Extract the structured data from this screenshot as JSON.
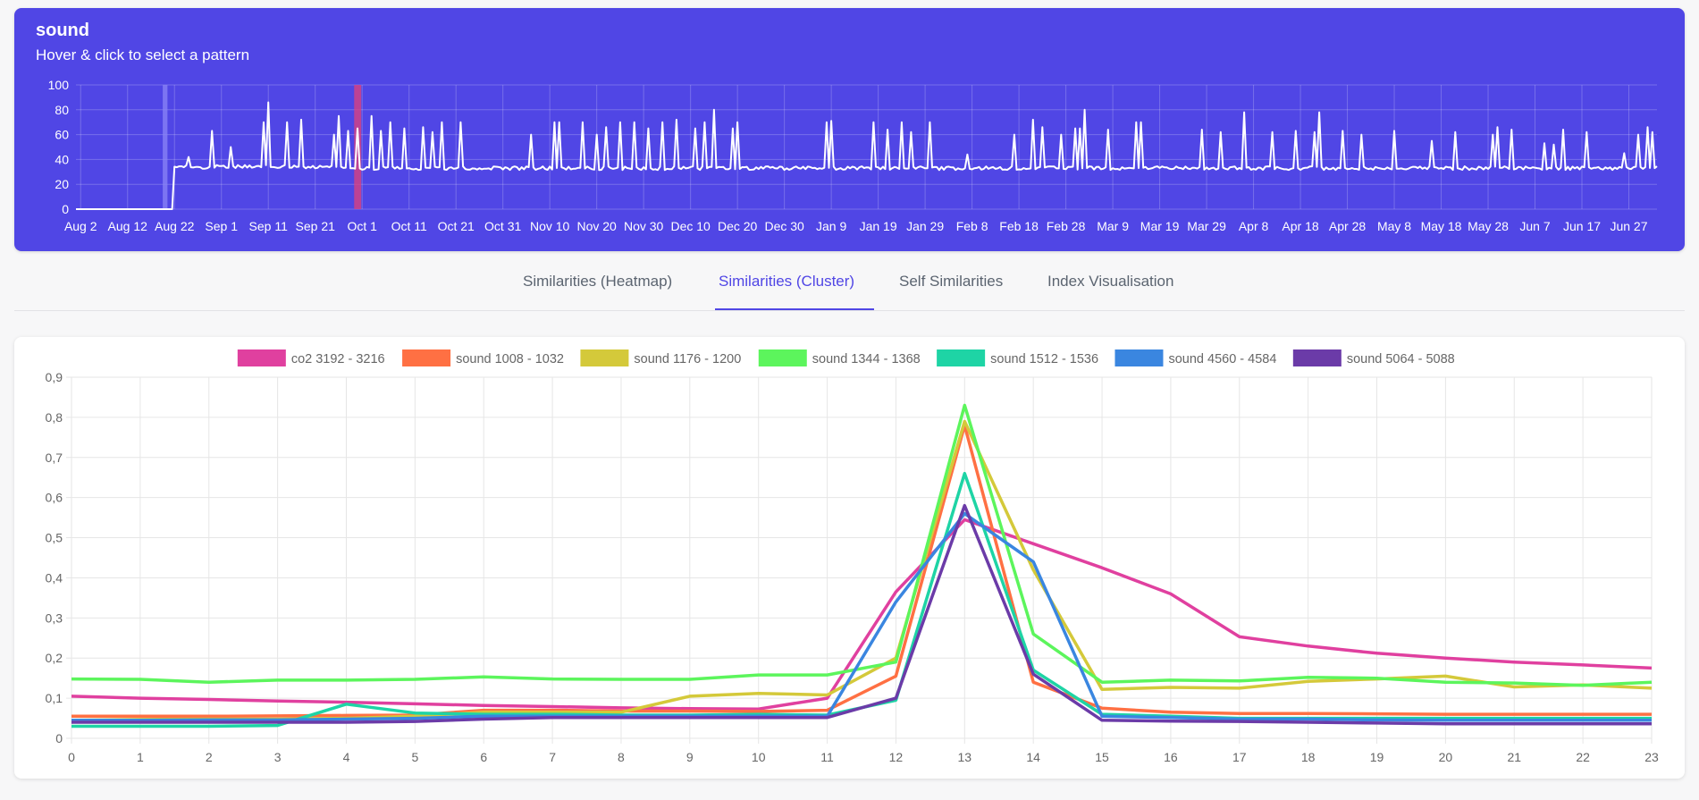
{
  "header": {
    "title": "sound",
    "subtitle": "Hover & click to select a pattern"
  },
  "overview_chart": {
    "type": "line",
    "y_ticks": [
      "100",
      "80",
      "60",
      "40",
      "20",
      "0"
    ],
    "ylim": [
      0,
      100
    ],
    "x_ticks": [
      "Aug 2",
      "Aug 12",
      "Aug 22",
      "Sep 1",
      "Sep 11",
      "Sep 21",
      "Oct 1",
      "Oct 11",
      "Oct 21",
      "Oct 31",
      "Nov 10",
      "Nov 20",
      "Nov 30",
      "Dec 10",
      "Dec 20",
      "Dec 30",
      "Jan 9",
      "Jan 19",
      "Jan 29",
      "Feb 8",
      "Feb 18",
      "Feb 28",
      "Mar 9",
      "Mar 19",
      "Mar 29",
      "Apr 8",
      "Apr 18",
      "Apr 28",
      "May 8",
      "May 18",
      "May 28",
      "Jun 7",
      "Jun 17",
      "Jun 27"
    ],
    "baseline_before_aug_22": 0,
    "baseline_after_aug_22": 33,
    "spike_values": [
      {
        "day": 24,
        "value": 42
      },
      {
        "day": 29,
        "value": 63
      },
      {
        "day": 33,
        "value": 50
      },
      {
        "day": 40,
        "value": 70
      },
      {
        "day": 41,
        "value": 86
      },
      {
        "day": 45,
        "value": 70
      },
      {
        "day": 48,
        "value": 72
      },
      {
        "day": 55,
        "value": 60
      },
      {
        "day": 56,
        "value": 75
      },
      {
        "day": 58,
        "value": 63
      },
      {
        "day": 60,
        "value": 65
      },
      {
        "day": 63,
        "value": 75
      },
      {
        "day": 65,
        "value": 63
      },
      {
        "day": 67,
        "value": 70
      },
      {
        "day": 70,
        "value": 65
      },
      {
        "day": 74,
        "value": 66
      },
      {
        "day": 76,
        "value": 62
      },
      {
        "day": 78,
        "value": 70
      },
      {
        "day": 82,
        "value": 70
      },
      {
        "day": 97,
        "value": 60
      },
      {
        "day": 102,
        "value": 70
      },
      {
        "day": 103,
        "value": 70
      },
      {
        "day": 108,
        "value": 70
      },
      {
        "day": 111,
        "value": 60
      },
      {
        "day": 113,
        "value": 66
      },
      {
        "day": 116,
        "value": 70
      },
      {
        "day": 119,
        "value": 70
      },
      {
        "day": 122,
        "value": 65
      },
      {
        "day": 125,
        "value": 70
      },
      {
        "day": 128,
        "value": 72
      },
      {
        "day": 132,
        "value": 65
      },
      {
        "day": 134,
        "value": 70
      },
      {
        "day": 136,
        "value": 80
      },
      {
        "day": 140,
        "value": 65
      },
      {
        "day": 141,
        "value": 70
      },
      {
        "day": 160,
        "value": 70
      },
      {
        "day": 161,
        "value": 71
      },
      {
        "day": 170,
        "value": 70
      },
      {
        "day": 173,
        "value": 64
      },
      {
        "day": 176,
        "value": 70
      },
      {
        "day": 178,
        "value": 62
      },
      {
        "day": 182,
        "value": 70
      },
      {
        "day": 190,
        "value": 44
      },
      {
        "day": 200,
        "value": 60
      },
      {
        "day": 204,
        "value": 72
      },
      {
        "day": 206,
        "value": 66
      },
      {
        "day": 210,
        "value": 60
      },
      {
        "day": 213,
        "value": 65
      },
      {
        "day": 214,
        "value": 65
      },
      {
        "day": 215,
        "value": 80
      },
      {
        "day": 220,
        "value": 64
      },
      {
        "day": 226,
        "value": 70
      },
      {
        "day": 227,
        "value": 70
      },
      {
        "day": 240,
        "value": 64
      },
      {
        "day": 244,
        "value": 62
      },
      {
        "day": 249,
        "value": 78
      },
      {
        "day": 255,
        "value": 62
      },
      {
        "day": 260,
        "value": 63
      },
      {
        "day": 264,
        "value": 62
      },
      {
        "day": 265,
        "value": 78
      },
      {
        "day": 270,
        "value": 63
      },
      {
        "day": 274,
        "value": 60
      },
      {
        "day": 281,
        "value": 63
      },
      {
        "day": 289,
        "value": 55
      },
      {
        "day": 294,
        "value": 62
      },
      {
        "day": 302,
        "value": 60
      },
      {
        "day": 303,
        "value": 66
      },
      {
        "day": 306,
        "value": 64
      },
      {
        "day": 313,
        "value": 53
      },
      {
        "day": 315,
        "value": 52
      },
      {
        "day": 317,
        "value": 64
      },
      {
        "day": 322,
        "value": 62
      },
      {
        "day": 330,
        "value": 45
      },
      {
        "day": 333,
        "value": 60
      },
      {
        "day": 335,
        "value": 66
      },
      {
        "day": 336,
        "value": 62
      }
    ],
    "selection_regions": [
      {
        "start_day": 18.5,
        "end_day": 19.5,
        "color": "#8b86f5"
      },
      {
        "start_day": 59.3,
        "end_day": 60.8,
        "color": "#e0427a"
      }
    ],
    "colors": {
      "line": "#ffffff",
      "grid": "rgba(255,255,255,0.22)",
      "panel": "#5046e5"
    }
  },
  "tabs": [
    {
      "label": "Similarities (Heatmap)",
      "active": false
    },
    {
      "label": "Similarities (Cluster)",
      "active": true
    },
    {
      "label": "Self Similarities",
      "active": false
    },
    {
      "label": "Index Visualisation",
      "active": false
    }
  ],
  "chart_data": {
    "type": "line",
    "categories": [
      "0",
      "1",
      "2",
      "3",
      "4",
      "5",
      "6",
      "7",
      "8",
      "9",
      "10",
      "11",
      "12",
      "13",
      "14",
      "15",
      "16",
      "17",
      "18",
      "19",
      "20",
      "21",
      "22",
      "23"
    ],
    "y_ticks": [
      "0",
      "0,1",
      "0,2",
      "0,3",
      "0,4",
      "0,5",
      "0,6",
      "0,7",
      "0,8",
      "0,9"
    ],
    "ylim": [
      0,
      0.9
    ],
    "grid": true,
    "legend_position": "top",
    "series": [
      {
        "name": "co2 3192 - 3216",
        "color": "#e0409f",
        "values": [
          0.105,
          0.1,
          0.097,
          0.093,
          0.09,
          0.086,
          0.082,
          0.079,
          0.076,
          0.074,
          0.073,
          0.1,
          0.365,
          0.545,
          0.485,
          0.425,
          0.36,
          0.253,
          0.23,
          0.212,
          0.2,
          0.19,
          0.183,
          0.175
        ]
      },
      {
        "name": "sound 1008 - 1032",
        "color": "#ff7043",
        "values": [
          0.055,
          0.055,
          0.055,
          0.056,
          0.057,
          0.058,
          0.07,
          0.07,
          0.068,
          0.068,
          0.067,
          0.07,
          0.155,
          0.78,
          0.14,
          0.075,
          0.065,
          0.062,
          0.062,
          0.061,
          0.06,
          0.06,
          0.06,
          0.06
        ]
      },
      {
        "name": "sound 1176 - 1200",
        "color": "#d4c93a",
        "values": [
          0.045,
          0.047,
          0.048,
          0.048,
          0.05,
          0.055,
          0.065,
          0.065,
          0.065,
          0.105,
          0.112,
          0.108,
          0.2,
          0.79,
          0.42,
          0.122,
          0.127,
          0.125,
          0.142,
          0.148,
          0.155,
          0.128,
          0.133,
          0.125
        ]
      },
      {
        "name": "sound 1344 - 1368",
        "color": "#5cf55c",
        "values": [
          0.148,
          0.147,
          0.14,
          0.145,
          0.145,
          0.147,
          0.153,
          0.148,
          0.147,
          0.147,
          0.158,
          0.158,
          0.19,
          0.83,
          0.26,
          0.14,
          0.145,
          0.143,
          0.152,
          0.15,
          0.14,
          0.138,
          0.132,
          0.14
        ]
      },
      {
        "name": "sound 1512 - 1536",
        "color": "#1ed4a5",
        "values": [
          0.03,
          0.03,
          0.03,
          0.032,
          0.085,
          0.063,
          0.06,
          0.06,
          0.058,
          0.058,
          0.06,
          0.058,
          0.095,
          0.66,
          0.17,
          0.06,
          0.055,
          0.05,
          0.05,
          0.05,
          0.05,
          0.05,
          0.05,
          0.05
        ]
      },
      {
        "name": "sound 4560 - 4584",
        "color": "#3a86e0",
        "values": [
          0.045,
          0.045,
          0.046,
          0.046,
          0.048,
          0.05,
          0.055,
          0.055,
          0.055,
          0.055,
          0.055,
          0.055,
          0.34,
          0.56,
          0.44,
          0.055,
          0.052,
          0.048,
          0.048,
          0.046,
          0.045,
          0.045,
          0.045,
          0.045
        ]
      },
      {
        "name": "sound 5064 - 5088",
        "color": "#6b3ba8",
        "values": [
          0.04,
          0.04,
          0.04,
          0.04,
          0.04,
          0.042,
          0.048,
          0.052,
          0.052,
          0.052,
          0.052,
          0.052,
          0.1,
          0.58,
          0.16,
          0.045,
          0.043,
          0.042,
          0.04,
          0.038,
          0.036,
          0.036,
          0.036,
          0.036
        ]
      }
    ]
  }
}
